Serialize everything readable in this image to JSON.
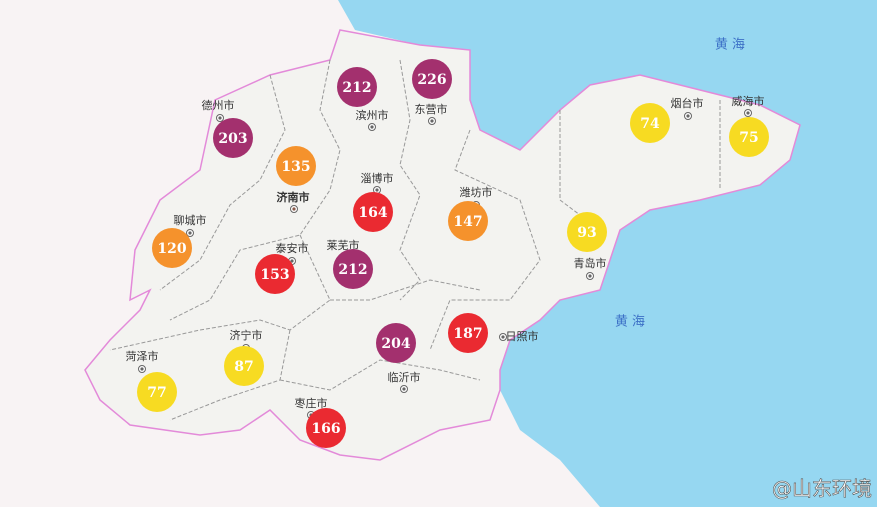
{
  "sea_labels": [
    "黄 海",
    "黄 海"
  ],
  "cities": [
    {
      "name": "德州市"
    },
    {
      "name": "滨州市"
    },
    {
      "name": "东营市"
    },
    {
      "name": "烟台市"
    },
    {
      "name": "威海市"
    },
    {
      "name": "淄博市"
    },
    {
      "name": "济南市"
    },
    {
      "name": "潍坊市"
    },
    {
      "name": "聊城市"
    },
    {
      "name": "泰安市"
    },
    {
      "name": "莱芜市"
    },
    {
      "name": "青岛市"
    },
    {
      "name": "济宁市"
    },
    {
      "name": "菏泽市"
    },
    {
      "name": "日照市"
    },
    {
      "name": "临沂市"
    },
    {
      "name": "枣庄市"
    }
  ],
  "aqi": [
    {
      "value": 212,
      "color": "#a3306e"
    },
    {
      "value": 226,
      "color": "#a3306e"
    },
    {
      "value": 203,
      "color": "#a3306e"
    },
    {
      "value": 135,
      "color": "#f5922c"
    },
    {
      "value": 74,
      "color": "#f7db22"
    },
    {
      "value": 75,
      "color": "#f7db22"
    },
    {
      "value": 164,
      "color": "#ea2a31"
    },
    {
      "value": 147,
      "color": "#f5922c"
    },
    {
      "value": 93,
      "color": "#f7db22"
    },
    {
      "value": 120,
      "color": "#f5922c"
    },
    {
      "value": 153,
      "color": "#ea2a31"
    },
    {
      "value": 212,
      "color": "#a3306e"
    },
    {
      "value": 187,
      "color": "#ea2a31"
    },
    {
      "value": 204,
      "color": "#a3306e"
    },
    {
      "value": 87,
      "color": "#f7db22"
    },
    {
      "value": 77,
      "color": "#f7db22"
    },
    {
      "value": 166,
      "color": "#ea2a31"
    }
  ],
  "watermark": "@山东环境"
}
